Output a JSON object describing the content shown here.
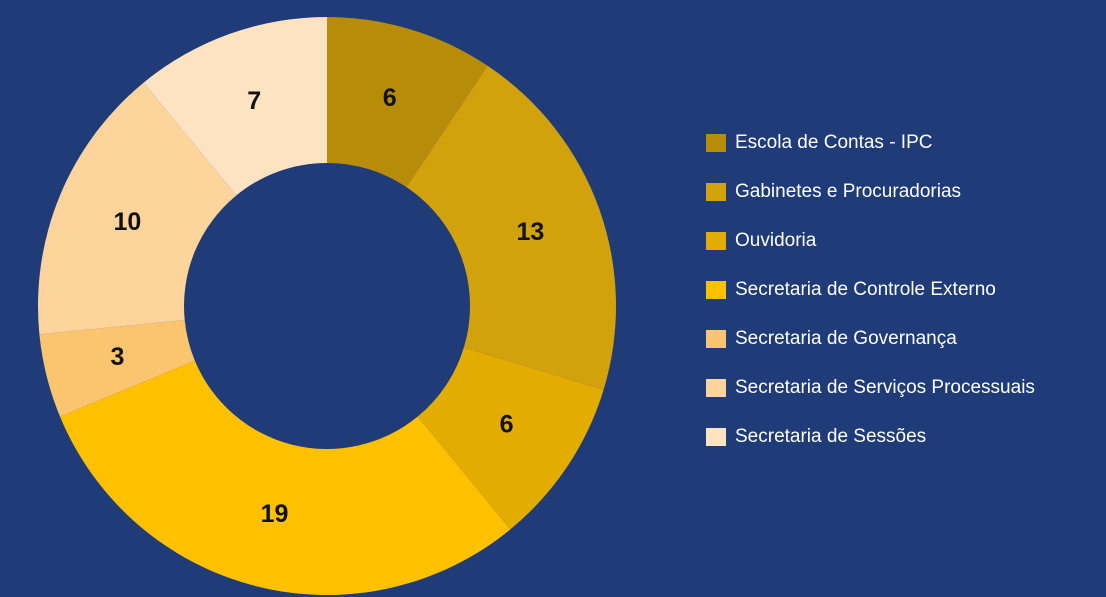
{
  "chart_data": {
    "type": "donut",
    "categories": [
      "Escola de Contas - IPC",
      "Gabinetes e Procuradorias",
      "Ouvidoria",
      "Secretaria de Controle Externo",
      "Secretaria de Governança",
      "Secretaria de Serviços Processuais",
      "Secretaria de Sessões"
    ],
    "values": [
      6,
      13,
      6,
      19,
      3,
      10,
      7
    ],
    "colors": [
      "#b78c08",
      "#d2a20c",
      "#e3ad00",
      "#ffc000",
      "#fbc46e",
      "#fcd49c",
      "#fde3c2"
    ]
  }
}
